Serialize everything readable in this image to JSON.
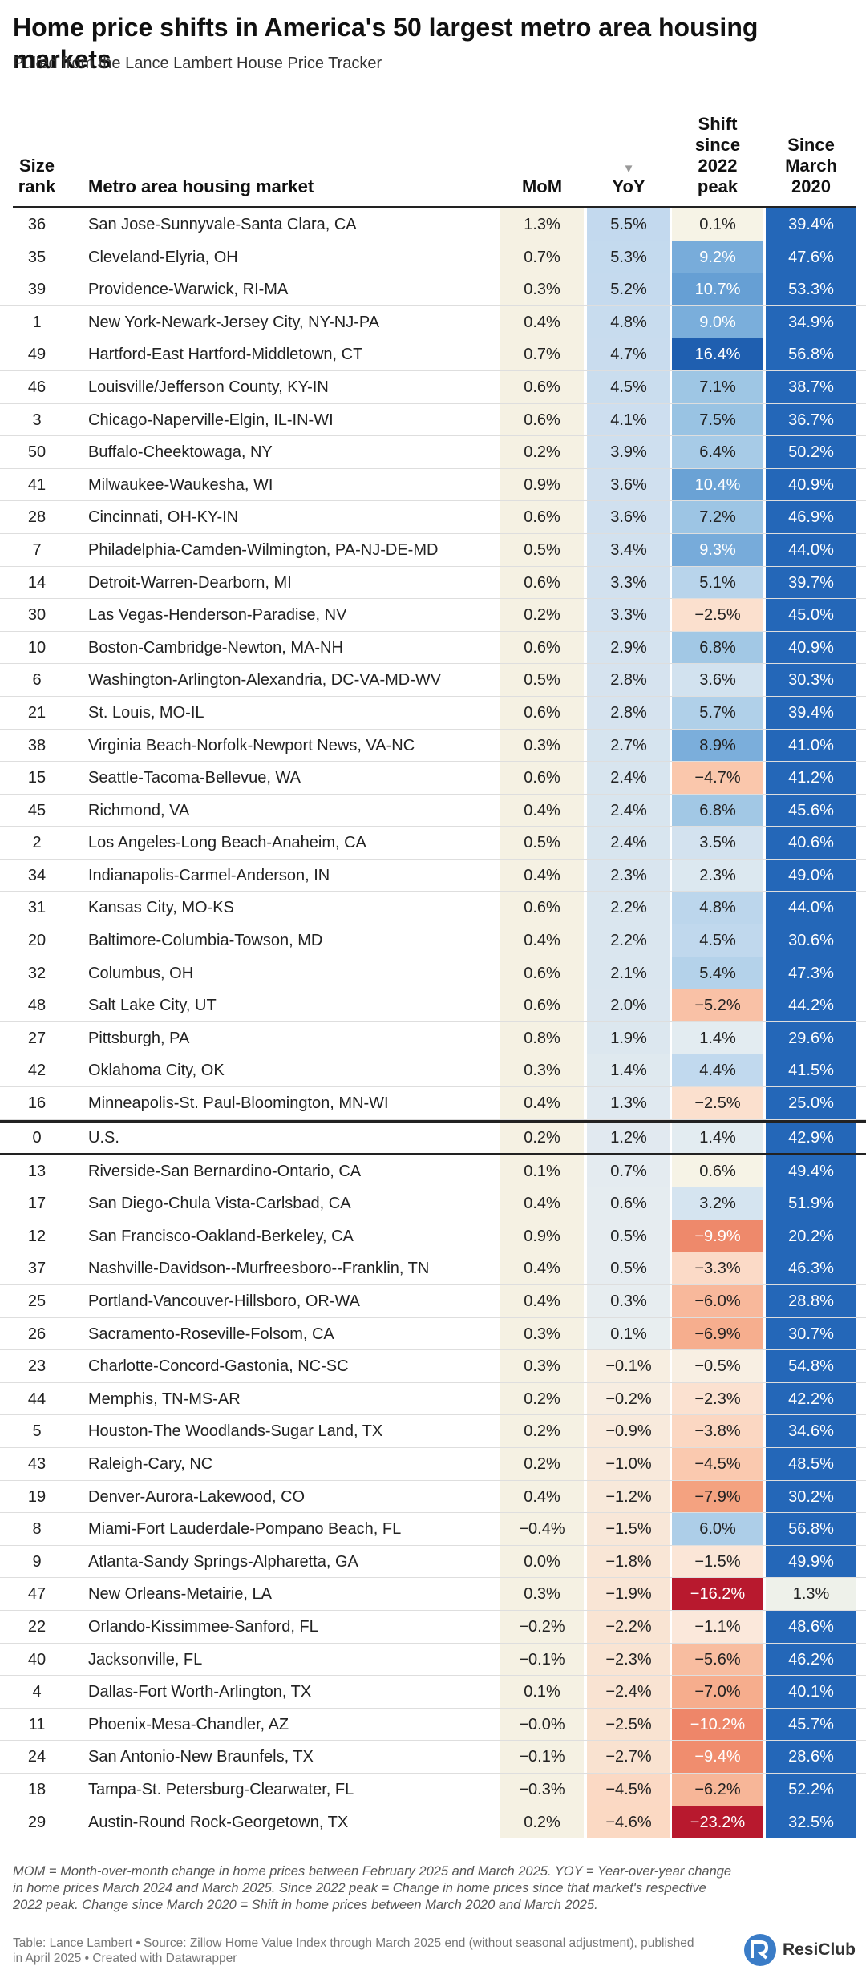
{
  "title": "Home price shifts in America's 50 largest metro area housing markets",
  "subtitle": "Pulled from the Lance Lambert House Price Tracker",
  "header": {
    "rank_line1": "Size",
    "rank_line2": "rank",
    "name": "Metro area housing market",
    "mom": "MoM",
    "yoy": "YoY",
    "sort_arrow": "▼",
    "peak_l1": "Shift",
    "peak_l2": "since",
    "peak_l3": "2022",
    "peak_l4": "peak",
    "since_l1": "Since",
    "since_l2": "March",
    "since_l3": "2020"
  },
  "chart_data": {
    "type": "table",
    "title": "Home price shifts in America's 50 largest metro area housing markets",
    "columns": [
      "Size rank",
      "Metro area housing market",
      "MoM",
      "YoY",
      "Shift since 2022 peak",
      "Since March 2020"
    ],
    "sort": "YoY descending",
    "rows": [
      [
        "36",
        "San Jose-Sunnyvale-Santa Clara, CA",
        "1.3%",
        "5.5%",
        "0.1%",
        "39.4%"
      ],
      [
        "35",
        "Cleveland-Elyria, OH",
        "0.7%",
        "5.3%",
        "9.2%",
        "47.6%"
      ],
      [
        "39",
        "Providence-Warwick, RI-MA",
        "0.3%",
        "5.2%",
        "10.7%",
        "53.3%"
      ],
      [
        "1",
        "New York-Newark-Jersey City, NY-NJ-PA",
        "0.4%",
        "4.8%",
        "9.0%",
        "34.9%"
      ],
      [
        "49",
        "Hartford-East Hartford-Middletown, CT",
        "0.7%",
        "4.7%",
        "16.4%",
        "56.8%"
      ],
      [
        "46",
        "Louisville/Jefferson County, KY-IN",
        "0.6%",
        "4.5%",
        "7.1%",
        "38.7%"
      ],
      [
        "3",
        "Chicago-Naperville-Elgin, IL-IN-WI",
        "0.6%",
        "4.1%",
        "7.5%",
        "36.7%"
      ],
      [
        "50",
        "Buffalo-Cheektowaga, NY",
        "0.2%",
        "3.9%",
        "6.4%",
        "50.2%"
      ],
      [
        "41",
        "Milwaukee-Waukesha, WI",
        "0.9%",
        "3.6%",
        "10.4%",
        "40.9%"
      ],
      [
        "28",
        "Cincinnati, OH-KY-IN",
        "0.6%",
        "3.6%",
        "7.2%",
        "46.9%"
      ],
      [
        "7",
        "Philadelphia-Camden-Wilmington, PA-NJ-DE-MD",
        "0.5%",
        "3.4%",
        "9.3%",
        "44.0%"
      ],
      [
        "14",
        "Detroit-Warren-Dearborn, MI",
        "0.6%",
        "3.3%",
        "5.1%",
        "39.7%"
      ],
      [
        "30",
        "Las Vegas-Henderson-Paradise, NV",
        "0.2%",
        "3.3%",
        "−2.5%",
        "45.0%"
      ],
      [
        "10",
        "Boston-Cambridge-Newton, MA-NH",
        "0.6%",
        "2.9%",
        "6.8%",
        "40.9%"
      ],
      [
        "6",
        "Washington-Arlington-Alexandria, DC-VA-MD-WV",
        "0.5%",
        "2.8%",
        "3.6%",
        "30.3%"
      ],
      [
        "21",
        "St. Louis, MO-IL",
        "0.6%",
        "2.8%",
        "5.7%",
        "39.4%"
      ],
      [
        "38",
        "Virginia Beach-Norfolk-Newport News, VA-NC",
        "0.3%",
        "2.7%",
        "8.9%",
        "41.0%"
      ],
      [
        "15",
        "Seattle-Tacoma-Bellevue, WA",
        "0.6%",
        "2.4%",
        "−4.7%",
        "41.2%"
      ],
      [
        "45",
        "Richmond, VA",
        "0.4%",
        "2.4%",
        "6.8%",
        "45.6%"
      ],
      [
        "2",
        "Los Angeles-Long Beach-Anaheim, CA",
        "0.5%",
        "2.4%",
        "3.5%",
        "40.6%"
      ],
      [
        "34",
        "Indianapolis-Carmel-Anderson, IN",
        "0.4%",
        "2.3%",
        "2.3%",
        "49.0%"
      ],
      [
        "31",
        "Kansas City, MO-KS",
        "0.6%",
        "2.2%",
        "4.8%",
        "44.0%"
      ],
      [
        "20",
        "Baltimore-Columbia-Towson, MD",
        "0.4%",
        "2.2%",
        "4.5%",
        "30.6%"
      ],
      [
        "32",
        "Columbus, OH",
        "0.6%",
        "2.1%",
        "5.4%",
        "47.3%"
      ],
      [
        "48",
        "Salt Lake City, UT",
        "0.6%",
        "2.0%",
        "−5.2%",
        "44.2%"
      ],
      [
        "27",
        "Pittsburgh, PA",
        "0.8%",
        "1.9%",
        "1.4%",
        "29.6%"
      ],
      [
        "42",
        "Oklahoma City, OK",
        "0.3%",
        "1.4%",
        "4.4%",
        "41.5%"
      ],
      [
        "16",
        "Minneapolis-St. Paul-Bloomington, MN-WI",
        "0.4%",
        "1.3%",
        "−2.5%",
        "25.0%"
      ],
      [
        "0",
        "U.S.",
        "0.2%",
        "1.2%",
        "1.4%",
        "42.9%"
      ],
      [
        "13",
        "Riverside-San Bernardino-Ontario, CA",
        "0.1%",
        "0.7%",
        "0.6%",
        "49.4%"
      ],
      [
        "17",
        "San Diego-Chula Vista-Carlsbad, CA",
        "0.4%",
        "0.6%",
        "3.2%",
        "51.9%"
      ],
      [
        "12",
        "San Francisco-Oakland-Berkeley, CA",
        "0.9%",
        "0.5%",
        "−9.9%",
        "20.2%"
      ],
      [
        "37",
        "Nashville-Davidson--Murfreesboro--Franklin, TN",
        "0.4%",
        "0.5%",
        "−3.3%",
        "46.3%"
      ],
      [
        "25",
        "Portland-Vancouver-Hillsboro, OR-WA",
        "0.4%",
        "0.3%",
        "−6.0%",
        "28.8%"
      ],
      [
        "26",
        "Sacramento-Roseville-Folsom, CA",
        "0.3%",
        "0.1%",
        "−6.9%",
        "30.7%"
      ],
      [
        "23",
        "Charlotte-Concord-Gastonia, NC-SC",
        "0.3%",
        "−0.1%",
        "−0.5%",
        "54.8%"
      ],
      [
        "44",
        "Memphis, TN-MS-AR",
        "0.2%",
        "−0.2%",
        "−2.3%",
        "42.2%"
      ],
      [
        "5",
        "Houston-The Woodlands-Sugar Land, TX",
        "0.2%",
        "−0.9%",
        "−3.8%",
        "34.6%"
      ],
      [
        "43",
        "Raleigh-Cary, NC",
        "0.2%",
        "−1.0%",
        "−4.5%",
        "48.5%"
      ],
      [
        "19",
        "Denver-Aurora-Lakewood, CO",
        "0.4%",
        "−1.2%",
        "−7.9%",
        "30.2%"
      ],
      [
        "8",
        "Miami-Fort Lauderdale-Pompano Beach, FL",
        "−0.4%",
        "−1.5%",
        "6.0%",
        "56.8%"
      ],
      [
        "9",
        "Atlanta-Sandy Springs-Alpharetta, GA",
        "0.0%",
        "−1.8%",
        "−1.5%",
        "49.9%"
      ],
      [
        "47",
        "New Orleans-Metairie, LA",
        "0.3%",
        "−1.9%",
        "−16.2%",
        "1.3%"
      ],
      [
        "22",
        "Orlando-Kissimmee-Sanford, FL",
        "−0.2%",
        "−2.2%",
        "−1.1%",
        "48.6%"
      ],
      [
        "40",
        "Jacksonville, FL",
        "−0.1%",
        "−2.3%",
        "−5.6%",
        "46.2%"
      ],
      [
        "4",
        "Dallas-Fort Worth-Arlington, TX",
        "0.1%",
        "−2.4%",
        "−7.0%",
        "40.1%"
      ],
      [
        "11",
        "Phoenix-Mesa-Chandler, AZ",
        "−0.0%",
        "−2.5%",
        "−10.2%",
        "45.7%"
      ],
      [
        "24",
        "San Antonio-New Braunfels, TX",
        "−0.1%",
        "−2.7%",
        "−9.4%",
        "28.6%"
      ],
      [
        "18",
        "Tampa-St. Petersburg-Clearwater, FL",
        "−0.3%",
        "−4.5%",
        "−6.2%",
        "52.2%"
      ],
      [
        "29",
        "Austin-Round Rock-Georgetown, TX",
        "0.2%",
        "−4.6%",
        "−23.2%",
        "32.5%"
      ]
    ]
  },
  "colors": {
    "mom_bg": "#f5f1e3",
    "yoy_pos": "#cfe0ef",
    "yoy_neg": "#fbe5d6",
    "since_bg": "#2467b8",
    "since_low": "#eef1ea",
    "us_line": "#222222"
  },
  "notes": "MOM = Month-over-month change in home prices between February 2025 and March 2025. YOY = Year-over-year change in home prices March 2024 and March 2025. Since 2022 peak = Change in home prices since that market's respective 2022 peak. Change since March 2020 = Shift in home prices between March 2020 and March 2025.",
  "source": "Table: Lance Lambert • Source: Zillow Home Value Index through March 2025 end (without seasonal adjustment), published in April 2025 • Created with Datawrapper",
  "logo": {
    "text": "ResiClub",
    "mark": "RC"
  }
}
